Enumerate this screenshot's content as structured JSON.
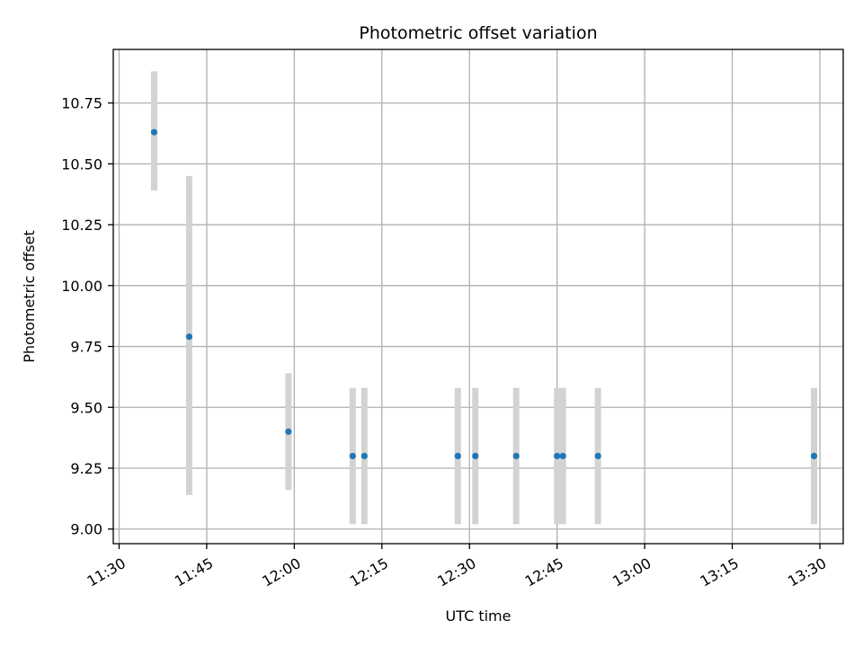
{
  "chart_data": {
    "type": "scatter",
    "title": "Photometric offset variation",
    "xlabel": "UTC time",
    "ylabel": "Photometric offset",
    "x_axis_kind": "time",
    "xlim": [
      "11:29",
      "13:34"
    ],
    "ylim": [
      8.94,
      10.97
    ],
    "x_ticks": [
      "11:30",
      "11:45",
      "12:00",
      "12:15",
      "12:30",
      "12:45",
      "13:00",
      "13:15",
      "13:30"
    ],
    "y_ticks": [
      "9.00",
      "9.25",
      "9.50",
      "9.75",
      "10.00",
      "10.25",
      "10.50",
      "10.75"
    ],
    "grid": true,
    "series": [
      {
        "marker_color": "#1f77b4",
        "errorbar_color": "#d3d3d3",
        "points": [
          {
            "x": "11:36",
            "y": 10.63,
            "yerr_low": 10.39,
            "yerr_high": 10.88
          },
          {
            "x": "11:42",
            "y": 9.79,
            "yerr_low": 9.14,
            "yerr_high": 10.45
          },
          {
            "x": "11:59",
            "y": 9.4,
            "yerr_low": 9.16,
            "yerr_high": 9.64
          },
          {
            "x": "12:10",
            "y": 9.3,
            "yerr_low": 9.02,
            "yerr_high": 9.58
          },
          {
            "x": "12:12",
            "y": 9.3,
            "yerr_low": 9.02,
            "yerr_high": 9.58
          },
          {
            "x": "12:28",
            "y": 9.3,
            "yerr_low": 9.02,
            "yerr_high": 9.58
          },
          {
            "x": "12:31",
            "y": 9.3,
            "yerr_low": 9.02,
            "yerr_high": 9.58
          },
          {
            "x": "12:38",
            "y": 9.3,
            "yerr_low": 9.02,
            "yerr_high": 9.58
          },
          {
            "x": "12:45",
            "y": 9.3,
            "yerr_low": 9.02,
            "yerr_high": 9.58
          },
          {
            "x": "12:46",
            "y": 9.3,
            "yerr_low": 9.02,
            "yerr_high": 9.58
          },
          {
            "x": "12:52",
            "y": 9.3,
            "yerr_low": 9.02,
            "yerr_high": 9.58
          },
          {
            "x": "13:29",
            "y": 9.3,
            "yerr_low": 9.02,
            "yerr_high": 9.58
          }
        ]
      }
    ]
  }
}
